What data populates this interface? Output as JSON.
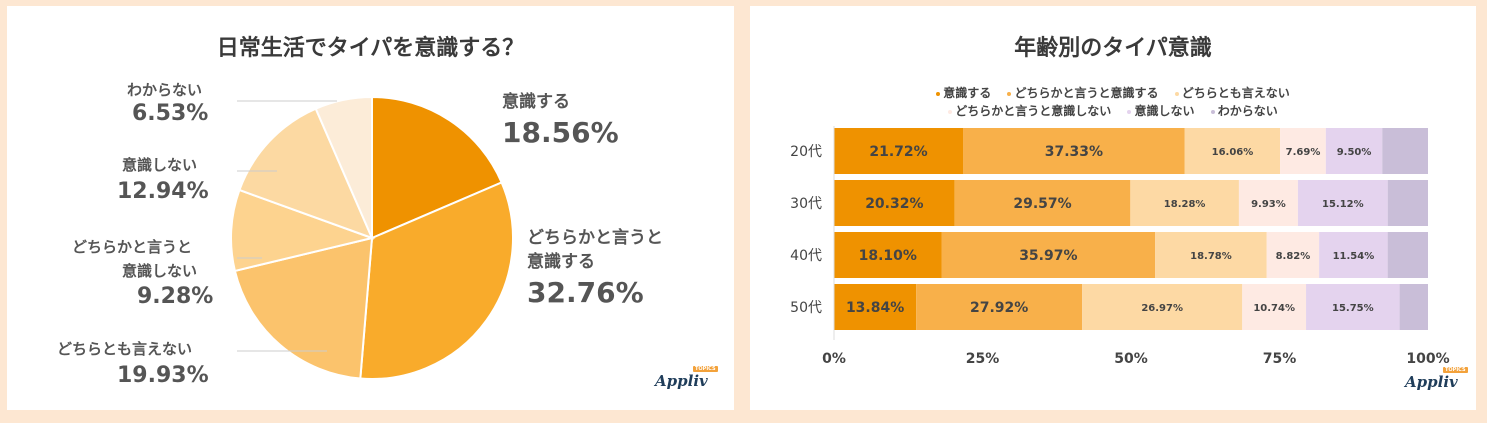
{
  "colors": {
    "page_bg": "#fde7d2",
    "s1": "#ef9200",
    "s2": "#f8b04a",
    "s3": "#fdd9a4",
    "s4": "#feeae3",
    "s5": "#e4d3ee",
    "s6": "#c9bed8",
    "pie1": "#ef9200",
    "pie2": "#f9ab2b",
    "pie3": "#fbc36c",
    "pie4": "#fdd38f",
    "pie5": "#fcd9a2",
    "pie6": "#fcecd8"
  },
  "chart_data": [
    {
      "type": "pie",
      "title": "日常生活でタイパを意識する？",
      "slices": [
        {
          "label": "意識する",
          "value": 18.56,
          "text": "18.56%"
        },
        {
          "label": "どちらかと言うと意識する",
          "value": 32.76,
          "text": "32.76%"
        },
        {
          "label": "どちらとも言えない",
          "value": 19.93,
          "text": "19.93%"
        },
        {
          "label": "どちらかと言うと意識しない",
          "value": 9.28,
          "text": "9.28%"
        },
        {
          "label": "意識しない",
          "value": 12.94,
          "text": "12.94%"
        },
        {
          "label": "わからない",
          "value": 6.53,
          "text": "6.53%"
        }
      ]
    },
    {
      "type": "bar",
      "orientation": "horizontal-stacked",
      "title": "年齢別のタイパ意識",
      "categories": [
        "20代",
        "30代",
        "40代",
        "50代"
      ],
      "xlim": [
        0,
        100
      ],
      "xticks": [
        "0%",
        "25%",
        "50%",
        "75%",
        "100%"
      ],
      "legend_position": "top",
      "series": [
        {
          "name": "意識する",
          "values": [
            21.72,
            20.32,
            18.1,
            13.84
          ],
          "labels": [
            "21.72%",
            "20.32%",
            "18.10%",
            "13.84%"
          ]
        },
        {
          "name": "どちらかと言うと意識する",
          "values": [
            37.33,
            29.57,
            35.97,
            27.92
          ],
          "labels": [
            "37.33%",
            "29.57%",
            "35.97%",
            "27.92%"
          ]
        },
        {
          "name": "どちらとも言えない",
          "values": [
            16.06,
            18.28,
            18.78,
            26.97
          ],
          "labels": [
            "16.06%",
            "18.28%",
            "18.78%",
            "26.97%"
          ]
        },
        {
          "name": "どちらかと言うと意識しない",
          "values": [
            7.69,
            9.93,
            8.82,
            10.74
          ],
          "labels": [
            "7.69%",
            "9.93%",
            "8.82%",
            "10.74%"
          ]
        },
        {
          "name": "意識しない",
          "values": [
            9.5,
            15.12,
            11.54,
            15.75
          ],
          "labels": [
            "9.50%",
            "15.12%",
            "11.54%",
            "15.75%"
          ]
        },
        {
          "name": "わからない",
          "values": [
            7.7,
            6.78,
            6.79,
            4.78
          ],
          "labels": [
            "",
            "",
            "",
            ""
          ]
        }
      ]
    }
  ],
  "left_labels": {
    "wakaranai_name": "わからない",
    "wakaranai_val": "6.53%",
    "ishikishinai_name": "意識しない",
    "ishikishinai_val": "12.94%",
    "dochira_shinai_name1": "どちらかと言うと",
    "dochira_shinai_name2": "意識しない",
    "dochira_shinai_val": "9.28%",
    "dochiratomo_name": "どちらとも言えない",
    "dochiratomo_val": "19.93%",
    "ishikisuru_name": "意識する",
    "ishikisuru_val": "18.56%",
    "dochira_suru_name1": "どちらかと言うと",
    "dochira_suru_name2": "意識する",
    "dochira_suru_val": "32.76%"
  },
  "logo": {
    "text": "Appliv",
    "badge": "TOPICS"
  }
}
